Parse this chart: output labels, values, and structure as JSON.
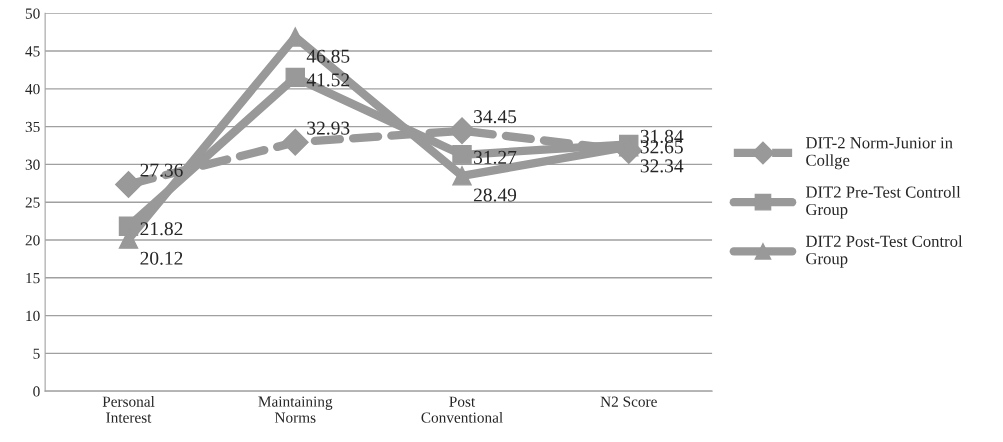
{
  "chart_data": {
    "type": "line",
    "categories": [
      "Personal\nInterest",
      "Maintaining\nNorms",
      "Post\nConventional",
      "N2 Score"
    ],
    "series": [
      {
        "name": "DIT-2 Norm-Junior in\nCollge",
        "color": "#999999",
        "values": [
          27.36,
          32.93,
          34.45,
          31.84
        ],
        "marker": "diamond",
        "line_style": "dashed"
      },
      {
        "name": "DIT2 Pre-Test Controll\nGroup",
        "color": "#999999",
        "values": [
          21.82,
          41.52,
          31.27,
          32.65
        ],
        "marker": "square",
        "line_style": "solid"
      },
      {
        "name": "DIT2 Post-Test Control\nGroup",
        "color": "#999999",
        "values": [
          20.12,
          46.85,
          28.49,
          32.34
        ],
        "marker": "triangle",
        "line_style": "solid"
      }
    ],
    "ylim": [
      0,
      50
    ],
    "yticks": [
      0,
      5,
      10,
      15,
      20,
      25,
      30,
      35,
      40,
      45,
      50
    ],
    "grid": "y",
    "legend": "right",
    "data_labels": true
  }
}
